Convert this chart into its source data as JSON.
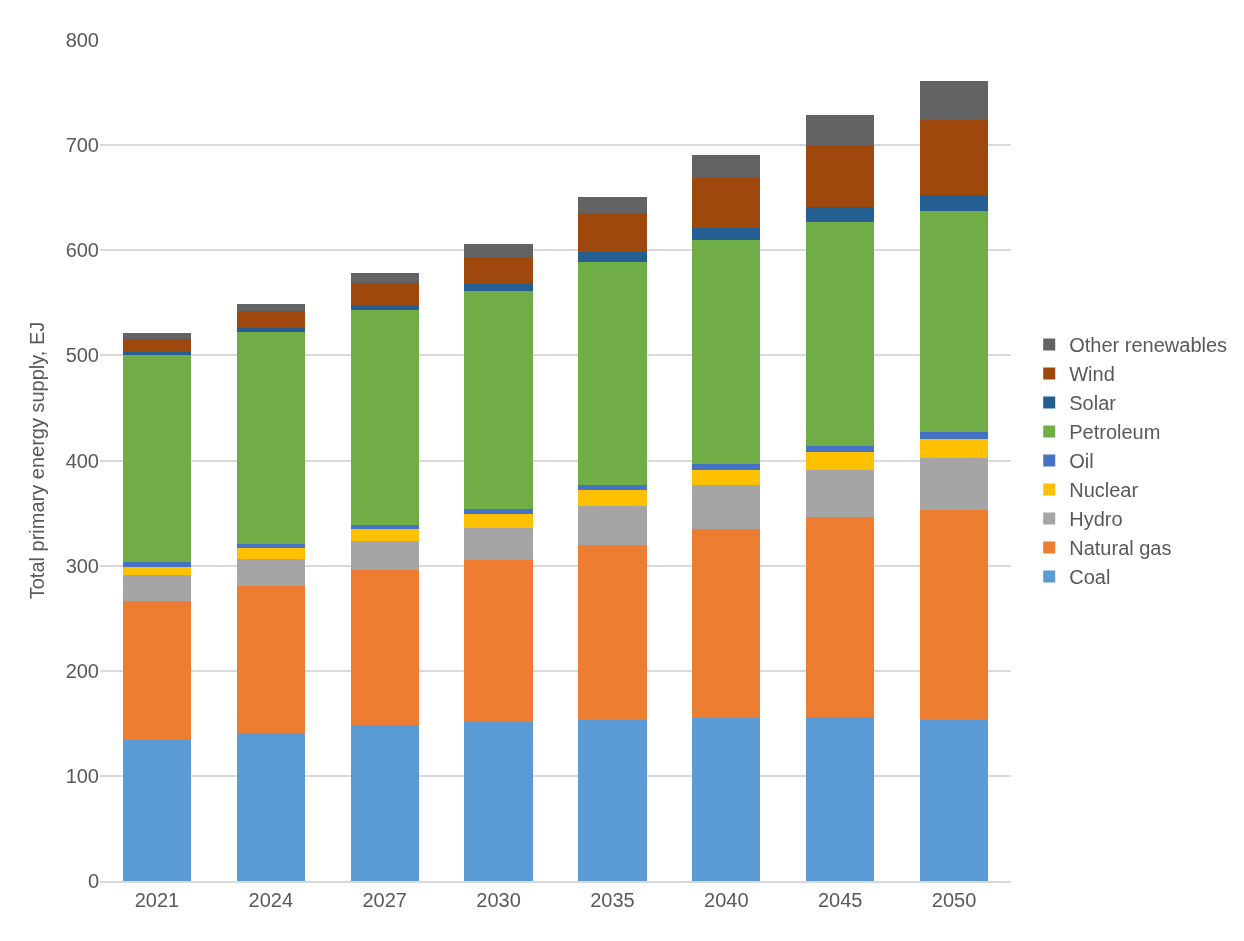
{
  "chart_data": {
    "type": "bar",
    "stacked": true,
    "ylabel": "Total primary energy supply, EJ",
    "categories": [
      "2021",
      "2024",
      "2027",
      "2030",
      "2035",
      "2040",
      "2045",
      "2050"
    ],
    "series": [
      {
        "name": "Coal",
        "color": "#5b9bd5",
        "values": [
          134,
          141,
          148,
          151,
          153,
          155,
          156,
          153
        ]
      },
      {
        "name": "Natural gas",
        "color": "#ed7d31",
        "values": [
          132,
          140,
          148,
          154,
          167,
          180,
          190,
          200
        ]
      },
      {
        "name": "Hydro",
        "color": "#a5a5a5",
        "values": [
          25,
          25,
          27,
          31,
          37,
          42,
          45,
          49
        ]
      },
      {
        "name": "Nuclear",
        "color": "#ffc000",
        "values": [
          8,
          11,
          12,
          13,
          15,
          14,
          17,
          18
        ]
      },
      {
        "name": "Oil",
        "color": "#4472c4",
        "values": [
          4,
          4,
          4,
          5,
          5,
          6,
          6,
          7
        ]
      },
      {
        "name": "Petroleum",
        "color": "#70ad47",
        "values": [
          197,
          201,
          204,
          207,
          212,
          213,
          213,
          210
        ]
      },
      {
        "name": "Solar",
        "color": "#255e91",
        "values": [
          3,
          4,
          5,
          7,
          9,
          11,
          14,
          16
        ]
      },
      {
        "name": "Wind",
        "color": "#9e480e",
        "values": [
          13,
          16,
          21,
          26,
          37,
          48,
          59,
          71
        ]
      },
      {
        "name": "Other renewables",
        "color": "#636363",
        "values": [
          5,
          7,
          9,
          12,
          16,
          22,
          29,
          37
        ]
      }
    ],
    "ylim": [
      0,
      800
    ],
    "yticks": [
      0,
      100,
      200,
      300,
      400,
      500,
      600,
      700,
      800
    ],
    "grid": "y",
    "legend": "right"
  }
}
